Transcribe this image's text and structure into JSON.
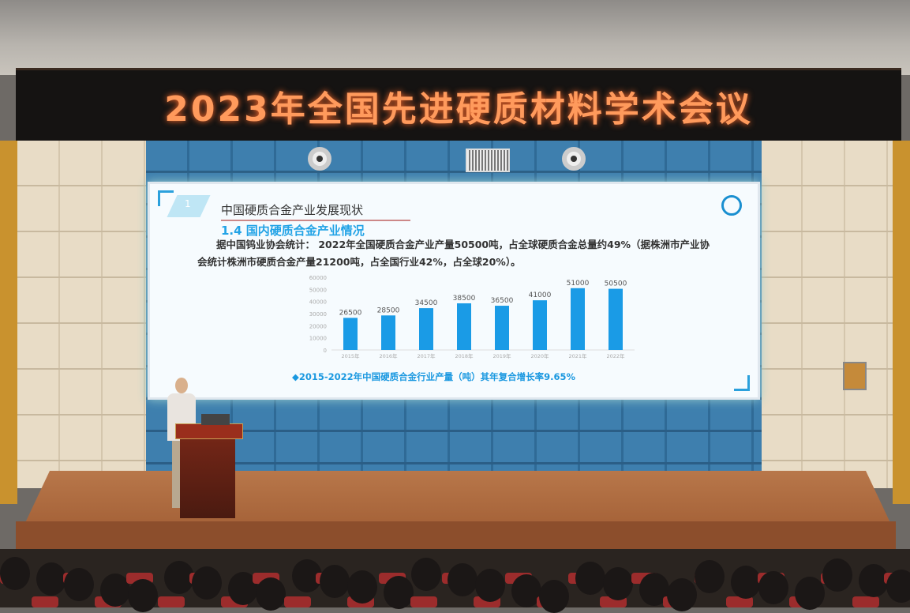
{
  "banner": {
    "text": "2023年全国先进硬质材料学术会议"
  },
  "slide": {
    "badge_number": "1",
    "title": "中国硬质合金产业发展现状",
    "section": "1.4  国内硬质合金产业情况",
    "body": "据中国钨业协会统计： 2022年全国硬质合金产业产量50500吨，占全球硬质合金总量约49%（据株洲市产业协会统计株洲市硬质合金产量21200吨，占全国行业42%，占全球20%）。",
    "caption": "◆2015-2022年中国硬质合金行业产量（吨）其年复合增长率9.65%"
  },
  "chart_data": {
    "type": "bar",
    "categories": [
      "2015年",
      "2016年",
      "2017年",
      "2018年",
      "2019年",
      "2020年",
      "2021年",
      "2022年"
    ],
    "values": [
      26500,
      28500,
      34500,
      38500,
      36500,
      41000,
      51000,
      50500
    ],
    "ylim": [
      0,
      60000
    ],
    "yticks": [
      "0",
      "10000",
      "20000",
      "30000",
      "40000",
      "50000",
      "60000"
    ],
    "bar_color": "#1a9be6",
    "grid": false
  }
}
